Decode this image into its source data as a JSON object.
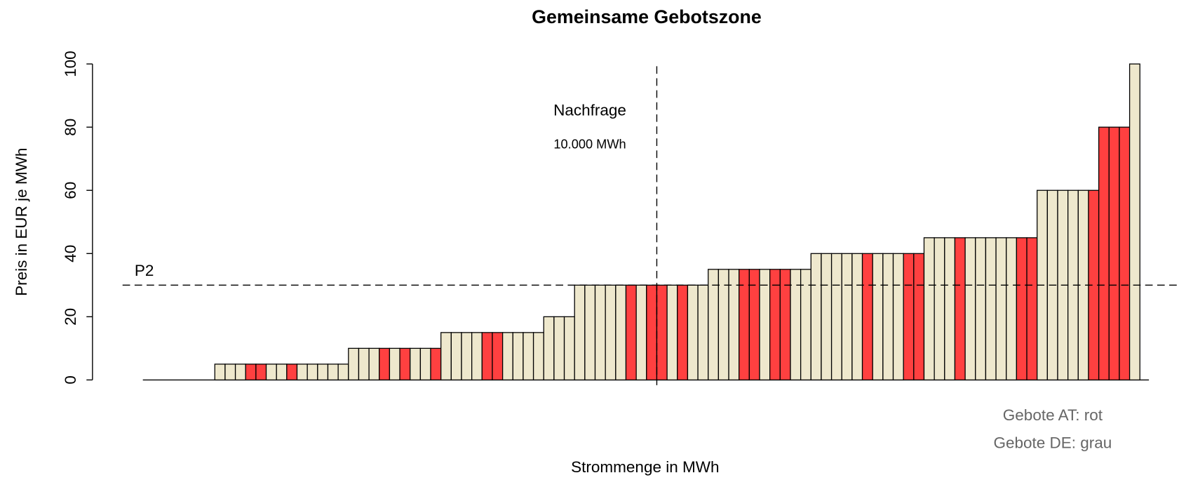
{
  "chart_data": {
    "type": "bar",
    "title": "Gemeinsame Gebotszone",
    "x_label": "Strommenge in MWh",
    "y_label": "Preis in EUR je MWh",
    "values": [
      0,
      0,
      0,
      0,
      0,
      0,
      0,
      5,
      5,
      5,
      5,
      5,
      5,
      5,
      5,
      5,
      5,
      5,
      5,
      5,
      10,
      10,
      10,
      10,
      10,
      10,
      10,
      10,
      10,
      15,
      15,
      15,
      15,
      15,
      15,
      15,
      15,
      15,
      15,
      20,
      20,
      20,
      30,
      30,
      30,
      30,
      30,
      30,
      30,
      30,
      30,
      30,
      30,
      30,
      30,
      35,
      35,
      35,
      35,
      35,
      35,
      35,
      35,
      35,
      35,
      40,
      40,
      40,
      40,
      40,
      40,
      40,
      40,
      40,
      40,
      40,
      45,
      45,
      45,
      45,
      45,
      45,
      45,
      45,
      45,
      45,
      45,
      60,
      60,
      60,
      60,
      60,
      60,
      80,
      80,
      80,
      100
    ],
    "colors": [
      "#eee8cd",
      "#eee8cd",
      "#eee8cd",
      "#eee8cd",
      "#eee8cd",
      "#eee8cd",
      "#eee8cd",
      "#eee8cd",
      "#eee8cd",
      "#eee8cd",
      "#ff4040",
      "#ff4040",
      "#eee8cd",
      "#eee8cd",
      "#ff4040",
      "#eee8cd",
      "#eee8cd",
      "#eee8cd",
      "#eee8cd",
      "#eee8cd",
      "#eee8cd",
      "#eee8cd",
      "#eee8cd",
      "#ff4040",
      "#eee8cd",
      "#ff4040",
      "#eee8cd",
      "#eee8cd",
      "#ff4040",
      "#eee8cd",
      "#eee8cd",
      "#eee8cd",
      "#eee8cd",
      "#ff4040",
      "#ff4040",
      "#eee8cd",
      "#eee8cd",
      "#eee8cd",
      "#eee8cd",
      "#eee8cd",
      "#eee8cd",
      "#eee8cd",
      "#eee8cd",
      "#eee8cd",
      "#eee8cd",
      "#eee8cd",
      "#eee8cd",
      "#ff4040",
      "#eee8cd",
      "#ff4040",
      "#ff4040",
      "#eee8cd",
      "#ff4040",
      "#eee8cd",
      "#eee8cd",
      "#eee8cd",
      "#eee8cd",
      "#eee8cd",
      "#ff4040",
      "#ff4040",
      "#eee8cd",
      "#ff4040",
      "#ff4040",
      "#eee8cd",
      "#eee8cd",
      "#eee8cd",
      "#eee8cd",
      "#eee8cd",
      "#eee8cd",
      "#eee8cd",
      "#ff4040",
      "#eee8cd",
      "#eee8cd",
      "#eee8cd",
      "#ff4040",
      "#ff4040",
      "#eee8cd",
      "#eee8cd",
      "#eee8cd",
      "#ff4040",
      "#eee8cd",
      "#eee8cd",
      "#eee8cd",
      "#eee8cd",
      "#eee8cd",
      "#ff4040",
      "#ff4040",
      "#eee8cd",
      "#eee8cd",
      "#eee8cd",
      "#eee8cd",
      "#eee8cd",
      "#ff4040",
      "#ff4040",
      "#ff4040",
      "#ff4040",
      "#eee8cd"
    ],
    "ylim": [
      0,
      100
    ],
    "yticks": [
      0,
      20,
      40,
      60,
      80,
      100
    ],
    "price_line": {
      "label": "P2",
      "value": 30
    },
    "demand_line": {
      "label": "Nachfrage",
      "sublabel": "10.000 MWh",
      "x": 50
    },
    "legend": [
      "Gebote AT: rot",
      "Gebote DE: grau"
    ]
  }
}
